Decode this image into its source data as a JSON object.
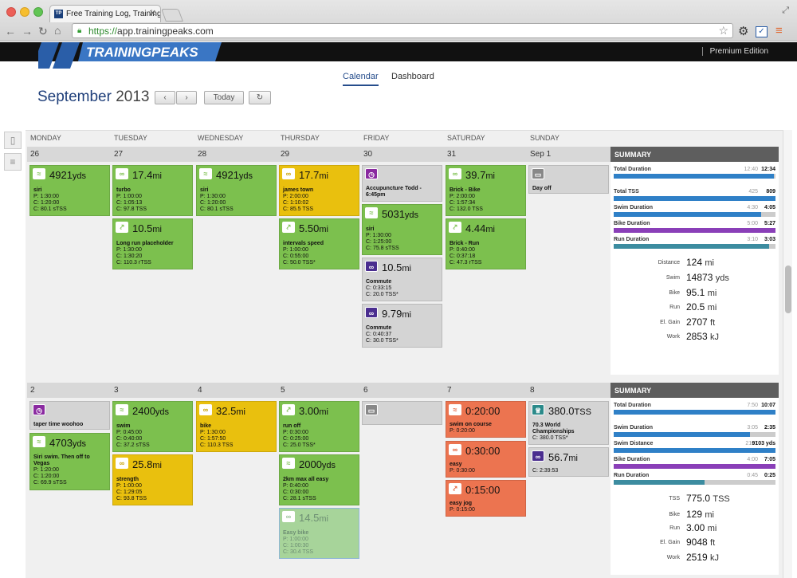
{
  "browser": {
    "tab_title": "Free Training Log, Training",
    "url_scheme": "https://",
    "url_host": "app.trainingpeaks.com"
  },
  "app": {
    "logo": "TRAININGPEAKS",
    "edition": "Premium Edition",
    "nav_calendar": "Calendar",
    "nav_dashboard": "Dashboard",
    "month": "September",
    "year": "2013",
    "today_label": "Today"
  },
  "days": [
    "MONDAY",
    "TUESDAY",
    "WEDNESDAY",
    "THURSDAY",
    "FRIDAY",
    "SATURDAY",
    "SUNDAY"
  ],
  "week1": {
    "dates": [
      "26",
      "27",
      "28",
      "29",
      "30",
      "31",
      "Sep 1"
    ],
    "summary_title": "SUMMARY",
    "bars": [
      {
        "label": "Total Duration",
        "plan": "12:40",
        "value": "12:34",
        "fill": 0.99,
        "color": "#2f80c7"
      },
      {
        "label": "Total TSS",
        "plan": "425",
        "value": "809",
        "fill": 1.0,
        "color": "#2f80c7"
      },
      {
        "label": "Swim Duration",
        "plan": "4:30",
        "value": "4:05",
        "fill": 0.91,
        "color": "#2f80c7"
      },
      {
        "label": "Bike Duration",
        "plan": "5:00",
        "value": "5:27",
        "fill": 1.0,
        "color": "#8a3fb8"
      },
      {
        "label": "Run Duration",
        "plan": "3:10",
        "value": "3:03",
        "fill": 0.96,
        "color": "#3c8ca0"
      }
    ],
    "totals": [
      {
        "label": "Distance",
        "value": "124",
        "unit": "mi"
      },
      {
        "label": "Swim",
        "value": "14873",
        "unit": "yds"
      },
      {
        "label": "Bike",
        "value": "95.1",
        "unit": "mi"
      },
      {
        "label": "Run",
        "value": "20.5",
        "unit": "mi"
      },
      {
        "label": "El. Gain",
        "value": "2707",
        "unit": "ft"
      },
      {
        "label": "Work",
        "value": "2853",
        "unit": "kJ"
      }
    ]
  },
  "week2": {
    "dates": [
      "2",
      "3",
      "4",
      "5",
      "6",
      "7",
      "8"
    ],
    "summary_title": "SUMMARY",
    "bars": [
      {
        "label": "Total Duration",
        "plan": "7:50",
        "value": "10:07",
        "fill": 1.0,
        "color": "#2f80c7"
      },
      {
        "label": "Swim Duration",
        "plan": "3:05",
        "value": "2:35",
        "fill": 0.84,
        "color": "#2f80c7"
      },
      {
        "label": "Swim Distance",
        "plan": "2187",
        "value": "9103 yds",
        "fill": 1.0,
        "color": "#2f80c7"
      },
      {
        "label": "Bike Duration",
        "plan": "4:00",
        "value": "7:05",
        "fill": 1.0,
        "color": "#8a3fb8"
      },
      {
        "label": "Run Duration",
        "plan": "0:45",
        "value": "0:25",
        "fill": 0.56,
        "color": "#3c8ca0"
      }
    ],
    "totals": [
      {
        "label": "TSS",
        "value": "775.0",
        "unit": "TSS"
      },
      {
        "label": "Bike",
        "value": "129",
        "unit": "mi"
      },
      {
        "label": "Run",
        "value": "3.00",
        "unit": "mi"
      },
      {
        "label": "El. Gain",
        "value": "9048",
        "unit": "ft"
      },
      {
        "label": "Work",
        "value": "2519",
        "unit": "kJ"
      }
    ]
  },
  "cards": {
    "w1_mon_1": {
      "big": "4921",
      "unit": "yds",
      "title": "siri",
      "lines": [
        "P: 1:30:00",
        "C: 1:20:00",
        "C: 80.1 sTSS"
      ]
    },
    "w1_tue_1": {
      "big": "17.4",
      "unit": "mi",
      "title": "turbo",
      "lines": [
        "P: 1:00:00",
        "C: 1:05:13",
        "C: 97.8 TSS"
      ]
    },
    "w1_tue_2": {
      "big": "10.5",
      "unit": "mi",
      "title": "Long run placeholder",
      "lines": [
        "P: 1:30:00",
        "C: 1:30:20",
        "C: 110.3 rTSS"
      ]
    },
    "w1_wed_1": {
      "big": "4921",
      "unit": "yds",
      "title": "siri",
      "lines": [
        "P: 1:30:00",
        "C: 1:20:00",
        "C: 80.1 sTSS"
      ]
    },
    "w1_thu_1": {
      "big": "17.7",
      "unit": "mi",
      "title": "james town",
      "lines": [
        "P: 2:00:00",
        "C: 1:10:02",
        "C: 85.5 TSS"
      ]
    },
    "w1_thu_2": {
      "big": "5.50",
      "unit": "mi",
      "title": "intervals speed",
      "lines": [
        "P: 1:00:00",
        "C: 0:55:00",
        "C: 50.0 TSS*"
      ]
    },
    "w1_fri_1": {
      "title1": "Accupuncture Todd -",
      "title2": "6:45pm"
    },
    "w1_fri_2": {
      "big": "5031",
      "unit": "yds",
      "title": "siri",
      "lines": [
        "P: 1:30:00",
        "C: 1:25:00",
        "C: 75.8 sTSS"
      ]
    },
    "w1_fri_3": {
      "big": "10.5",
      "unit": "mi",
      "title": "Commute",
      "lines": [
        "C: 0:33:15",
        "C: 20.0 TSS*"
      ]
    },
    "w1_fri_4": {
      "big": "9.79",
      "unit": "mi",
      "title": "Commute",
      "lines": [
        "C: 0:40:37",
        "C: 30.0 TSS*"
      ]
    },
    "w1_sat_1": {
      "big": "39.7",
      "unit": "mi",
      "title": "Brick - Bike",
      "lines": [
        "P: 2:00:00",
        "C: 1:57:34",
        "C: 132.0 TSS"
      ]
    },
    "w1_sat_2": {
      "big": "4.44",
      "unit": "mi",
      "title": "Brick - Run",
      "lines": [
        "P: 0:40:00",
        "C: 0:37:18",
        "C: 47.3 rTSS"
      ]
    },
    "w1_sun_1": {
      "title": "Day off"
    },
    "w2_mon_1": {
      "title": "taper time woohoo"
    },
    "w2_mon_2": {
      "big": "4703",
      "unit": "yds",
      "title": "Siri swim. Then off to",
      "title2": "Vegas",
      "lines": [
        "P: 1:20:00",
        "C: 1:20:00",
        "C: 69.9 sTSS"
      ]
    },
    "w2_tue_1": {
      "big": "2400",
      "unit": "yds",
      "title": "swim",
      "lines": [
        "P: 0:45:00",
        "C: 0:40:00",
        "C: 37.2 sTSS"
      ]
    },
    "w2_tue_2": {
      "big": "25.8",
      "unit": "mi",
      "title": "strength",
      "lines": [
        "P: 1:00:00",
        "C: 1:29:05",
        "C: 93.8 TSS"
      ]
    },
    "w2_wed_1": {
      "big": "32.5",
      "unit": "mi",
      "title": "bike",
      "lines": [
        "P: 1:30:00",
        "C: 1:57:50",
        "C: 110.3 TSS"
      ]
    },
    "w2_thu_1": {
      "big": "3.00",
      "unit": "mi",
      "title": "run off",
      "lines": [
        "P: 0:30:00",
        "C: 0:25:00",
        "C: 25.0 TSS*"
      ]
    },
    "w2_thu_2": {
      "big": "2000",
      "unit": "yds",
      "title": "2km max all easy",
      "lines": [
        "P: 0:40:00",
        "C: 0:30:00",
        "C: 28.1 sTSS"
      ]
    },
    "w2_thu_3": {
      "big": "14.5",
      "unit": "mi",
      "title": "Easy bike",
      "lines": [
        "P: 1:00:00",
        "C: 1:00:30",
        "C: 30.4 TSS"
      ]
    },
    "w2_sat_1": {
      "big": "0:20:00",
      "title": "swim on course",
      "lines": [
        "P: 0:20:00"
      ]
    },
    "w2_sat_2": {
      "big": "0:30:00",
      "title": "easy",
      "lines": [
        "P: 0:30:00"
      ]
    },
    "w2_sat_3": {
      "big": "0:15:00",
      "title": "easy jog",
      "lines": [
        "P: 0:15:00"
      ]
    },
    "w2_sun_1": {
      "big": "380.0",
      "unit": "TSS",
      "title": "70.3 World",
      "title2": "Championships",
      "lines": [
        "C: 380.0 TSS*"
      ]
    },
    "w2_sun_2": {
      "big": "56.7",
      "unit": "mi",
      "lines": [
        "C: 2:39:53"
      ]
    }
  }
}
